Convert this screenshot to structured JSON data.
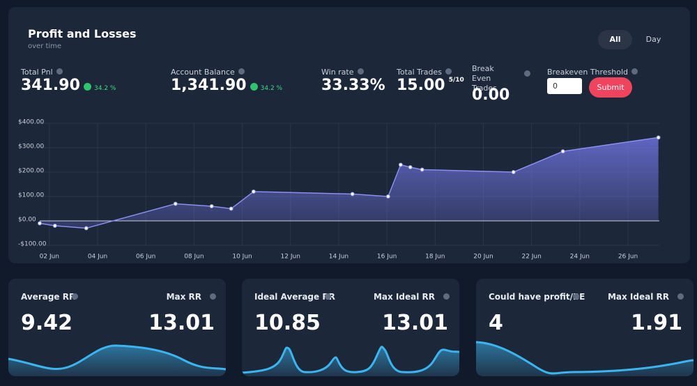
{
  "header": {
    "title": "Profit and Losses",
    "subtitle": "over time"
  },
  "tabs": [
    "All",
    "Day"
  ],
  "stats": [
    {
      "label": "Total Pnl",
      "value": "341.90",
      "change": "34.2 %"
    },
    {
      "label": "Account Balance",
      "value": "1,341.90",
      "change": "34.2 %"
    },
    {
      "label": "Win rate",
      "value": "33.33%"
    },
    {
      "label": "Total Trades",
      "value": "15.00",
      "detail": "5/10"
    },
    {
      "label": "Break Even Trades",
      "value": "0.00"
    }
  ],
  "threshold": {
    "label": "Breakeven Threshold",
    "input": "0",
    "button": "Submit"
  },
  "chart_data": {
    "type": "line",
    "x": [
      1.6,
      2.23,
      3.53,
      7.23,
      8.73,
      9.54,
      10.47,
      14.57,
      16.05,
      16.57,
      16.97,
      17.46,
      21.25,
      23.3,
      27.26
    ],
    "values": [
      -10,
      -20,
      -30,
      70,
      60,
      50,
      120,
      110,
      100,
      230,
      220,
      210,
      200,
      285,
      341.9
    ],
    "color": "#8b8ff0",
    "xlim": [
      1.6,
      27.3
    ],
    "xticks": [
      {
        "value": 2,
        "label": "02 Jun"
      },
      {
        "value": 4,
        "label": "04 Jun"
      },
      {
        "value": 6,
        "label": "06 Jun"
      },
      {
        "value": 8,
        "label": "08 Jun"
      },
      {
        "value": 10,
        "label": "10 Jun"
      },
      {
        "value": 12,
        "label": "12 Jun"
      },
      {
        "value": 14,
        "label": "14 Jun"
      },
      {
        "value": 16,
        "label": "16 Jun"
      },
      {
        "value": 18,
        "label": "18 Jun"
      },
      {
        "value": 20,
        "label": "20 Jun"
      },
      {
        "value": 22,
        "label": "22 Jun"
      },
      {
        "value": 24,
        "label": "24 Jun"
      },
      {
        "value": 26,
        "label": "26 Jun"
      }
    ],
    "ylim": [
      -100,
      400
    ],
    "yticks": [
      {
        "value": -100,
        "label": "-$100.00"
      },
      {
        "value": 0,
        "label": "$0.00"
      },
      {
        "value": 100,
        "label": "$100.00"
      },
      {
        "value": 200,
        "label": "$200.00"
      },
      {
        "value": 300,
        "label": "$300.00"
      },
      {
        "value": 400,
        "label": "$400.00"
      }
    ],
    "grid": true
  },
  "cards": [
    {
      "left_label": "Average RR",
      "left_value": "9.42",
      "right_label": "Max RR",
      "right_value": "13.01"
    },
    {
      "left_label": "Ideal Average RR",
      "left_value": "10.85",
      "right_label": "Max Ideal RR",
      "right_value": "13.01"
    },
    {
      "left_label": "Could have profit/BE",
      "left_value": "4",
      "right_label": "Max Ideal RR",
      "right_value": "1.91"
    }
  ]
}
